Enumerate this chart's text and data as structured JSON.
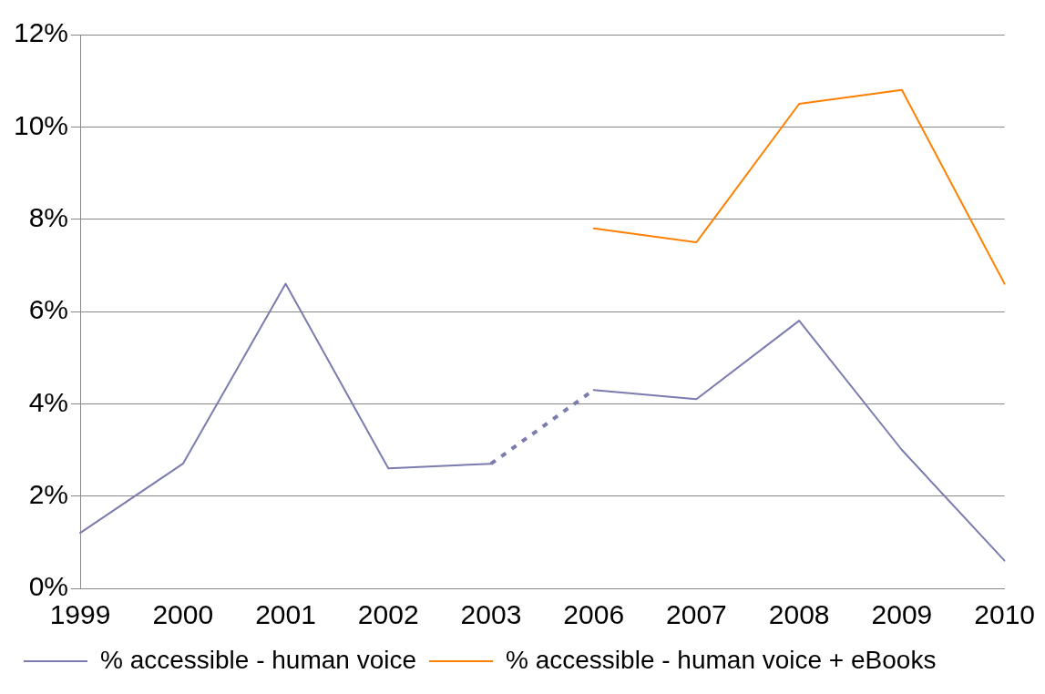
{
  "chart_data": {
    "type": "line",
    "categories": [
      "1999",
      "2000",
      "2001",
      "2002",
      "2003",
      "2006",
      "2007",
      "2008",
      "2009",
      "2010"
    ],
    "series": [
      {
        "name": "% accessible - human voice",
        "color": "#7b7bb0",
        "values": [
          1.2,
          2.7,
          6.6,
          2.6,
          2.7,
          null,
          null,
          null,
          null,
          null
        ]
      },
      {
        "color": "#7b7bb0",
        "line_style": "dotted",
        "values": [
          null,
          null,
          null,
          null,
          2.7,
          4.3,
          null,
          null,
          null,
          null
        ]
      },
      {
        "color": "#7b7bb0",
        "values": [
          null,
          null,
          null,
          null,
          null,
          4.3,
          4.1,
          5.8,
          3.0,
          0.6
        ]
      },
      {
        "name": "% accessible - human voice + eBooks",
        "color": "#ff8000",
        "values": [
          null,
          null,
          null,
          null,
          null,
          7.8,
          7.5,
          10.5,
          10.8,
          6.6
        ]
      }
    ],
    "ylim": [
      0,
      12
    ],
    "yticks": [
      {
        "value": 0,
        "label": "0%"
      },
      {
        "value": 2,
        "label": "2%"
      },
      {
        "value": 4,
        "label": "4%"
      },
      {
        "value": 6,
        "label": "6%"
      },
      {
        "value": 8,
        "label": "8%"
      },
      {
        "value": 10,
        "label": "10%"
      },
      {
        "value": 12,
        "label": "12%"
      }
    ],
    "grid": "y",
    "legend": "bottom",
    "marker": "none",
    "line_style": "solid"
  }
}
